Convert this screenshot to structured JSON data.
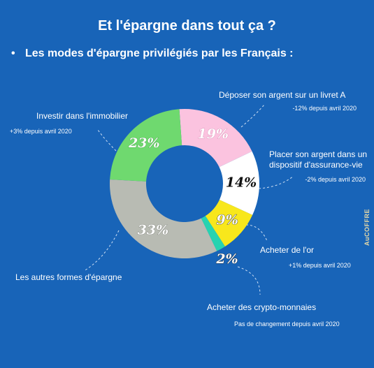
{
  "chart_data": {
    "type": "donut",
    "title": "Et l'épargne dans tout ça ?",
    "subtitle": "Les modes d'épargne privilégiés par les Français :",
    "brand": "AuCOFFRE",
    "categories": [
      "Déposer son argent sur un livret A",
      "Placer son argent dans un dispositif d'assurance-vie",
      "Acheter de l'or",
      "Acheter des crypto-monnaies",
      "Les autres formes d'épargne",
      "Investir dans l'immobilier"
    ],
    "values": [
      19,
      14,
      9,
      2,
      33,
      23
    ],
    "value_labels": [
      "19%",
      "14%",
      "9%",
      "2%",
      "33%",
      "23%"
    ],
    "colors": [
      "#fbc3df",
      "#ffffff",
      "#f8e71c",
      "#27d3b0",
      "#b8bbb3",
      "#6fd96f"
    ],
    "annotations": [
      "-12% depuis avril 2020",
      "-2% depuis avril 2020",
      "+1% depuis avril 2020",
      "Pas de changement depuis avril 2020",
      null,
      "+3% depuis avril 2020"
    ]
  }
}
